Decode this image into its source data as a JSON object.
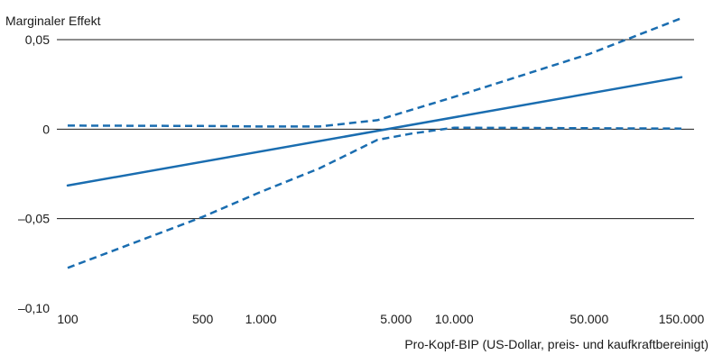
{
  "chart_data": {
    "type": "line",
    "title": "",
    "ylabel": "Marginaler Effekt",
    "xlabel": "Pro-Kopf-BIP (US-Dollar, preis- und kaufkraftbereinigt)",
    "x_scale": "log",
    "xlim": [
      100,
      150000
    ],
    "ylim": [
      -0.1,
      0.05
    ],
    "grid": true,
    "legend": "none",
    "xticks": [
      {
        "value": 100,
        "label": "100"
      },
      {
        "value": 500,
        "label": "500"
      },
      {
        "value": 1000,
        "label": "1.000"
      },
      {
        "value": 5000,
        "label": "5.000"
      },
      {
        "value": 10000,
        "label": "10.000"
      },
      {
        "value": 50000,
        "label": "50.000"
      },
      {
        "value": 150000,
        "label": "150.000"
      }
    ],
    "yticks": [
      {
        "value": 0.05,
        "label": "0,05"
      },
      {
        "value": 0,
        "label": "0"
      },
      {
        "value": -0.05,
        "label": "–0,05"
      },
      {
        "value": -0.1,
        "label": "–0,10"
      }
    ],
    "series": [
      {
        "style": "solid",
        "x": [
          100,
          150000
        ],
        "y": [
          -0.0315,
          0.029
        ]
      },
      {
        "style": "dashed",
        "x": [
          100,
          500,
          1000,
          2000,
          4000,
          10000,
          50000,
          150000
        ],
        "y": [
          0.002,
          0.0018,
          0.0015,
          0.0015,
          0.005,
          0.018,
          0.042,
          0.062
        ]
      },
      {
        "style": "dashed",
        "x": [
          100,
          500,
          1000,
          2000,
          4000,
          6000,
          10000,
          50000,
          150000
        ],
        "y": [
          -0.0775,
          -0.049,
          -0.035,
          -0.022,
          -0.006,
          -0.0025,
          0.0008,
          0.0005,
          0.0003
        ]
      }
    ],
    "colors": {
      "series": "#1a6db0",
      "grid": "#1a1a1a",
      "text": "#1a1a1a"
    }
  }
}
